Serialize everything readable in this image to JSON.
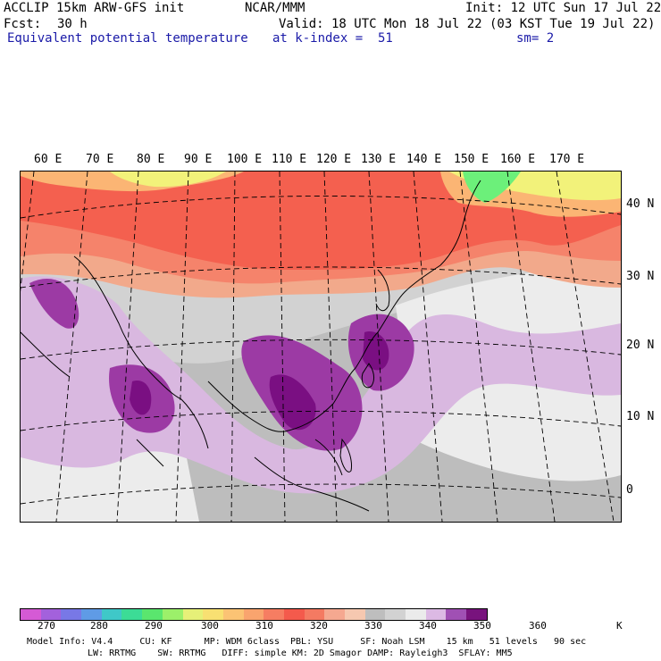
{
  "header": {
    "model": "ACCLIP 15km ARW-GFS init",
    "center": "NCAR/MMM",
    "init": "Init: 12 UTC Sun 17 Jul 22",
    "fcst_label": "Fcst:",
    "fcst_value": "30 h",
    "valid": "Valid: 18 UTC Mon 18 Jul 22 (03 KST Tue 19 Jul 22)",
    "field": "Equivalent potential temperature",
    "level": "at k-index =  51",
    "smooth": "sm= 2"
  },
  "map": {
    "lon_labels": [
      "60 E",
      "70 E",
      "80 E",
      "90 E",
      "100 E",
      "110 E",
      "120 E",
      "130 E",
      "140 E",
      "150 E",
      "160 E",
      "170 E"
    ],
    "lat_labels": [
      "40 N",
      "30 N",
      "20 N",
      "10 N",
      "0"
    ],
    "colors": {
      "deep_purple": "#7a0f82",
      "purple": "#9c3aa4",
      "light_purple": "#d9b8e0",
      "white": "#f2f2f2",
      "light_gray": "#c8c8c8",
      "gray": "#b4b4b4",
      "peach": "#f2a98b",
      "salmon": "#f5836b",
      "red": "#f4604f",
      "orange": "#fbb574",
      "yellow": "#f2f27a",
      "green": "#6cf07a"
    }
  },
  "colorbar": {
    "colors": [
      "#d55ad5",
      "#a361dc",
      "#7878e6",
      "#5f9be6",
      "#3fc8c8",
      "#3cdc96",
      "#5ae66e",
      "#9cf06a",
      "#e6f078",
      "#f8e072",
      "#fbc374",
      "#f9a46e",
      "#f67d62",
      "#f45a4c",
      "#f47a62",
      "#f5a890",
      "#f6c8b0",
      "#bebebe",
      "#d2d2d2",
      "#ebebeb",
      "#dcb9e4",
      "#a050b4",
      "#78137d"
    ],
    "labels": [
      "270",
      "280",
      "290",
      "300",
      "310",
      "320",
      "330",
      "340",
      "350",
      "360"
    ],
    "unit": "K"
  },
  "footer": {
    "line1": "Model Info: V4.4     CU: KF      MP: WDM 6class  PBL: YSU     SF: Noah LSM    15 km   51 levels   90 sec",
    "line2": "LW: RRTMG    SW: RRTMG   DIFF: simple KM: 2D Smagor DAMP: Rayleigh3  SFLAY: MM5"
  }
}
